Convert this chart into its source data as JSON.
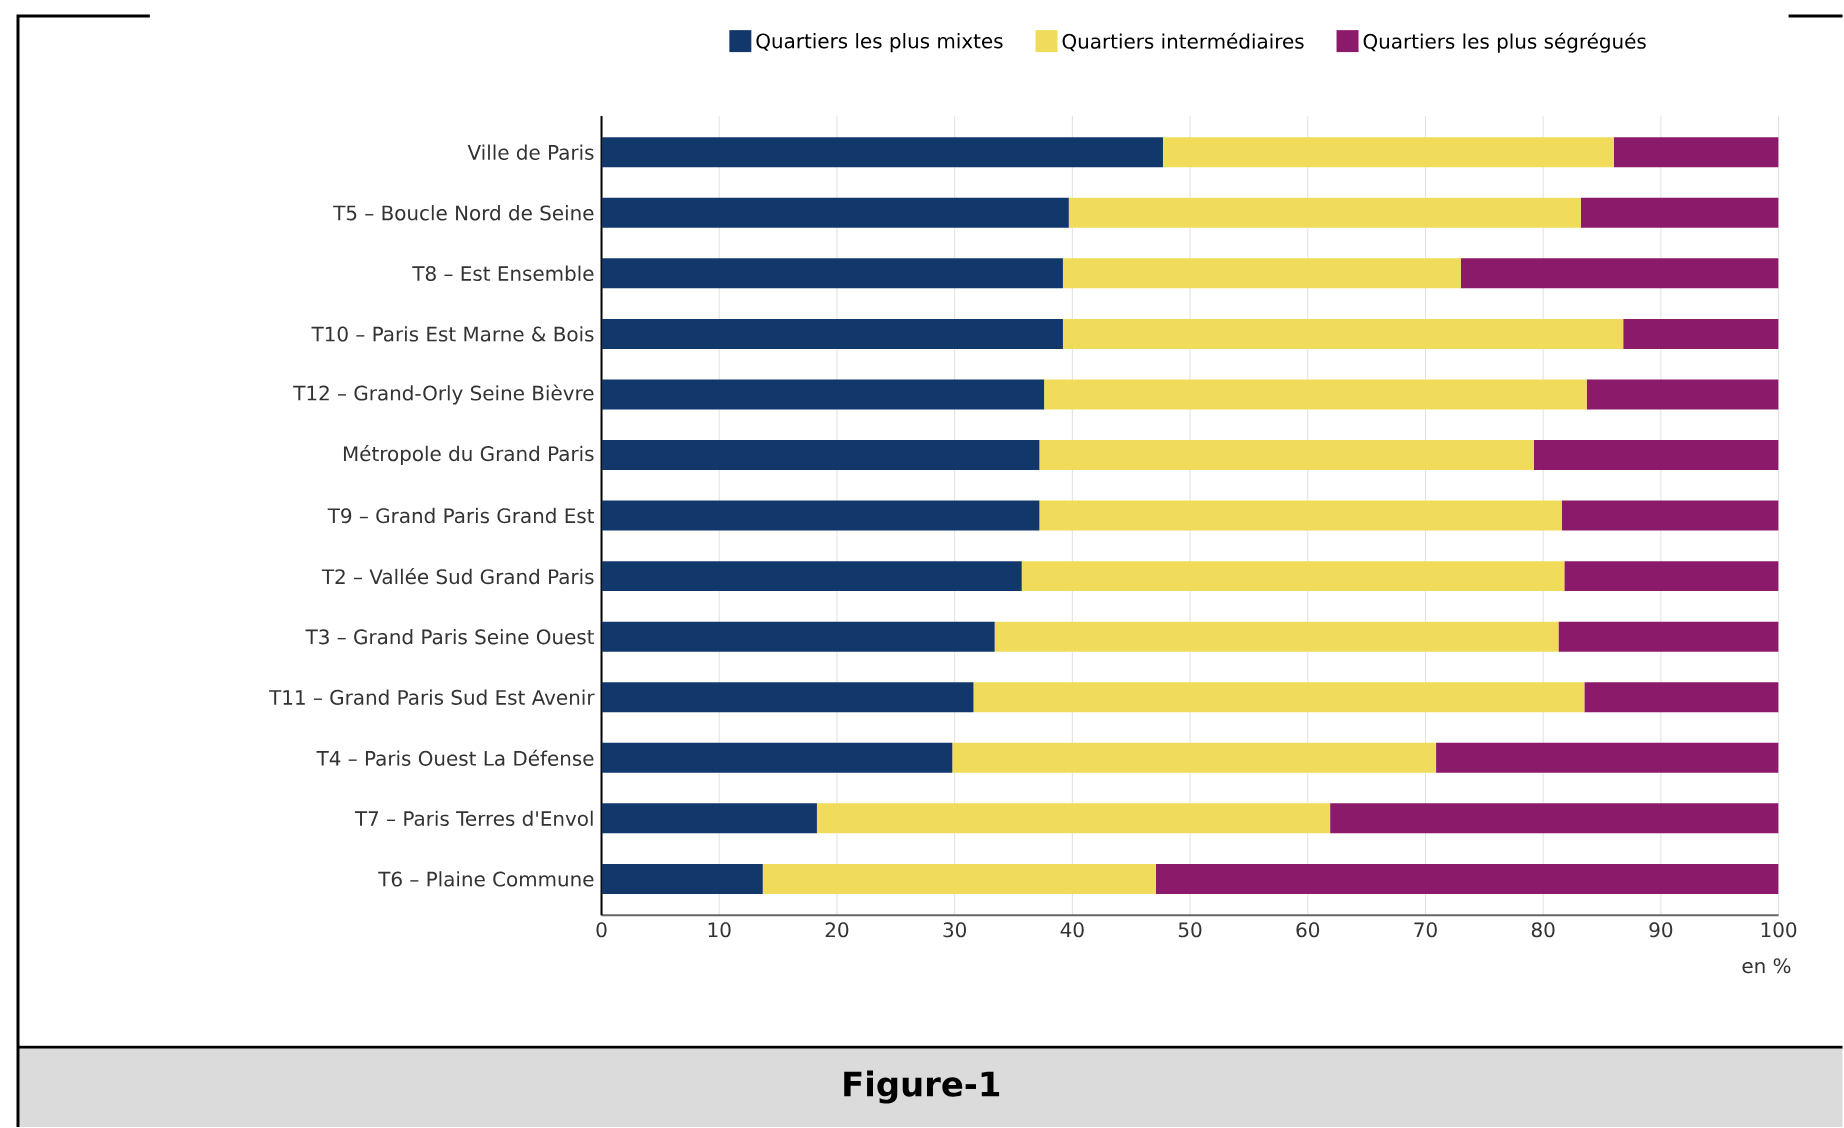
{
  "chart_data": {
    "type": "bar",
    "orientation": "horizontal",
    "stacked": true,
    "xlabel": "en %",
    "categories": [
      "Ville de Paris",
      "T5 – Boucle Nord de Seine",
      "T8 – Est Ensemble",
      "T10 – Paris Est Marne & Bois",
      "T12 – Grand-Orly Seine Bièvre",
      "Métropole du Grand Paris",
      "T9 – Grand Paris Grand Est",
      "T2 – Vallée Sud  Grand Paris",
      "T3 – Grand Paris Seine Ouest",
      "T11 – Grand Paris Sud Est Avenir",
      "T4 – Paris Ouest La Défense",
      "T7 – Paris Terres d'Envol",
      "T6 – Plaine Commune"
    ],
    "series": [
      {
        "name": "Quartiers les plus mixtes",
        "color": "#12386b",
        "values": [
          47.7,
          39.7,
          39.2,
          39.2,
          37.6,
          37.2,
          37.2,
          35.7,
          33.4,
          31.6,
          29.8,
          18.3,
          13.7
        ]
      },
      {
        "name": "Quartiers intermédiaires",
        "color": "#f0dc5a",
        "values": [
          38.3,
          43.5,
          33.8,
          47.6,
          46.1,
          42.0,
          44.4,
          46.1,
          47.9,
          51.9,
          41.1,
          43.6,
          33.4
        ]
      },
      {
        "name": "Quartiers les plus ségrégués",
        "color": "#8b1a6b",
        "values": [
          14.0,
          16.8,
          27.0,
          13.2,
          16.3,
          20.8,
          18.4,
          18.2,
          18.7,
          16.5,
          29.1,
          38.1,
          52.9
        ]
      }
    ],
    "xlim": [
      0,
      100
    ],
    "xticks": [
      0,
      10,
      20,
      30,
      40,
      50,
      60,
      70,
      80,
      90,
      100
    ],
    "grid": "x",
    "legend": "top",
    "annotations": [
      "Figure-1"
    ]
  }
}
